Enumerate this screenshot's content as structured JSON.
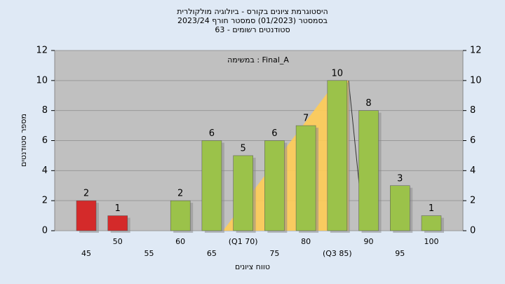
{
  "chart_data": {
    "type": "bar",
    "title": [
      "היסטוגרמת ציונים בקורס - ביולוגיה מולקולרית",
      "בסמסטר (01/2023) סמסטר חורף 2023/24",
      "סטודנטים רשומים - 63"
    ],
    "annotation": "במשימה : Final_A",
    "x_label": "טווח ציונים",
    "y_label": "מספר סטודנטים",
    "categories": [
      "45",
      "50",
      "55",
      "60",
      "65",
      "(Q1 70)",
      "75",
      "80",
      "(Q3 85)",
      "90",
      "95",
      "100"
    ],
    "values": [
      2,
      1,
      0,
      2,
      6,
      5,
      6,
      7,
      10,
      8,
      3,
      1
    ],
    "colors": [
      "#d42a2a",
      "#d42a2a",
      "#9bc24a",
      "#9bc24a",
      "#9bc24a",
      "#9bc24a",
      "#9bc24a",
      "#9bc24a",
      "#9bc24a",
      "#9bc24a",
      "#9bc24a",
      "#9bc24a"
    ],
    "ylim": [
      0,
      12
    ],
    "yticks": [
      0,
      2,
      4,
      6,
      8,
      10,
      12
    ],
    "y2lim": [
      0,
      12
    ],
    "y2ticks": [
      0,
      2,
      4,
      6,
      8,
      10,
      12
    ],
    "grid": true
  }
}
